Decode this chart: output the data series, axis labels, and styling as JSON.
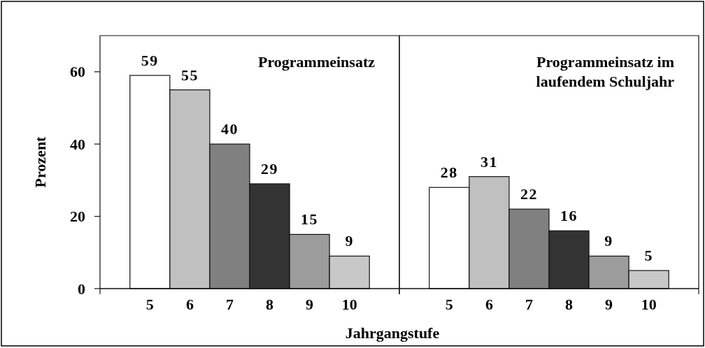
{
  "chart_data": [
    {
      "type": "bar",
      "title": "Programmeinsatz",
      "xlabel": "Jahrgangstufe",
      "ylabel": "Prozent",
      "categories": [
        "5",
        "6",
        "7",
        "8",
        "9",
        "10"
      ],
      "values": [
        59,
        55,
        40,
        29,
        15,
        9
      ],
      "colors": [
        "#ffffff",
        "#c0c0c0",
        "#808080",
        "#333333",
        "#9c9c9c",
        "#c8c8c8"
      ],
      "ylim": [
        0,
        70
      ],
      "yticks": [
        0,
        20,
        40,
        60
      ],
      "data_labels": true
    },
    {
      "type": "bar",
      "title": "Programmeinsatz im laufendem Schuljahr",
      "categories": [
        "5",
        "6",
        "7",
        "8",
        "9",
        "10"
      ],
      "values": [
        28,
        31,
        22,
        16,
        9,
        5
      ],
      "colors": [
        "#ffffff",
        "#c0c0c0",
        "#808080",
        "#333333",
        "#9c9c9c",
        "#c8c8c8"
      ],
      "ylim": [
        0,
        70
      ],
      "data_labels": true,
      "tick_labels": "x"
    }
  ]
}
